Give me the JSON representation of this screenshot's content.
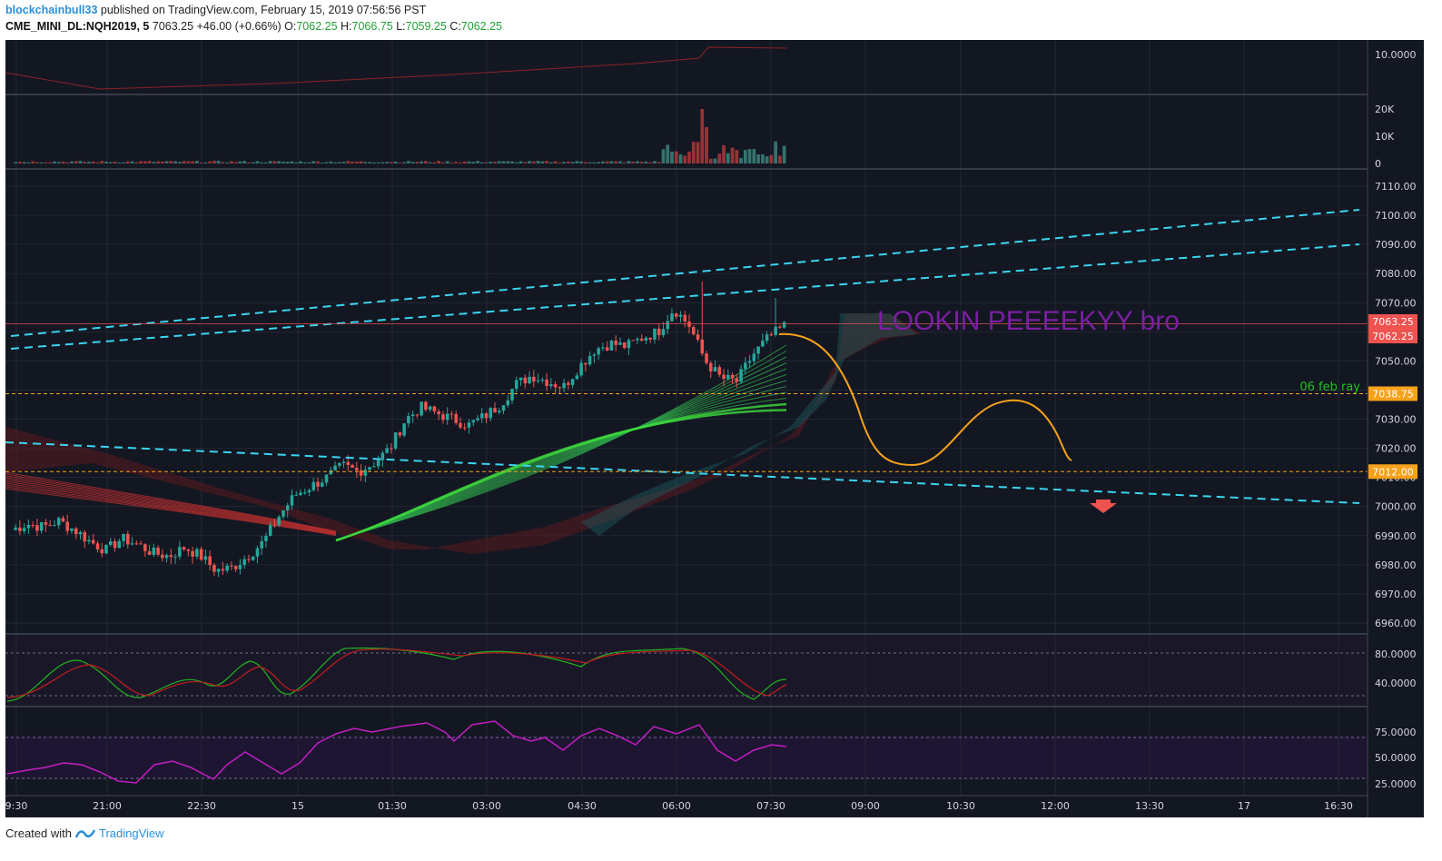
{
  "header": {
    "author": "blockchainbull33",
    "published_text": "published on TradingView.com, February 15, 2019 07:56:56 PST",
    "symbol": "CME_MINI_DL:NQH2019, 5",
    "last": "7063.25",
    "change": "+46.00 (+0.66%)",
    "o_label": "O:",
    "o_value": "7062.25",
    "h_label": "H:",
    "h_value": "7066.75",
    "l_label": "L:",
    "l_value": "7059.25",
    "c_label": "C:",
    "c_value": "7062.25"
  },
  "footer": {
    "created_with": "Created with",
    "brand": "TradingView"
  },
  "colors": {
    "background": "#131722",
    "grid": "#2a2e39",
    "up": "#26a69a",
    "down": "#ef5350",
    "channel": "#3bd5f0",
    "ray": "#f7a21b",
    "annotation": "#7b1fa2",
    "projection": "#f7a21b",
    "ray_label": "#21c21e",
    "stoch_k": "#21b31d",
    "stoch_d": "#c21e1e",
    "rsi": "#c21ec2"
  },
  "chart_data": {
    "type": "candlestick",
    "symbol": "CME_MINI_DL:NQH2019",
    "interval": "5",
    "x_ticks": [
      "9:30",
      "21:00",
      "22:30",
      "15",
      "01:30",
      "03:00",
      "04:30",
      "06:00",
      "07:30",
      "09:00",
      "10:30",
      "12:00",
      "13:30",
      "17",
      "16:30"
    ],
    "y_ticks": [
      "7110.00",
      "7100.00",
      "7090.00",
      "7080.00",
      "7070.00",
      "7060.00",
      "7050.00",
      "7040.00",
      "7030.00",
      "7020.00",
      "7010.00",
      "7000.00",
      "6990.00",
      "6980.00",
      "6970.00",
      "6960.00"
    ],
    "ylim": [
      6955,
      7115
    ],
    "ohlc_path": [
      6992,
      6994,
      6993,
      6995,
      6992,
      6988,
      6985,
      6989,
      6987,
      6984,
      6983,
      6986,
      6983,
      6978,
      6979,
      6983,
      6988,
      6997,
      7004,
      7007,
      7010,
      7014,
      7012,
      7015,
      7020,
      7030,
      7034,
      7032,
      7030,
      7028,
      7031,
      7035,
      7042,
      7045,
      7043,
      7041,
      7048,
      7054,
      7056,
      7055,
      7058,
      7060,
      7068,
      7062,
      7050,
      7044,
      7043,
      7052,
      7058,
      7062
    ],
    "price_labels": [
      {
        "text": "7063.25",
        "value": 7063.25,
        "bg": "#ef5350"
      },
      {
        "text": "7062.25",
        "value": 7062.25,
        "bg": "#ef5350"
      },
      {
        "text": "7038.75",
        "value": 7038.75,
        "bg": "#f7a21b"
      },
      {
        "text": "7012.00",
        "value": 7012.0,
        "bg": "#f7a21b"
      }
    ],
    "ray_label": "06 feb ray",
    "annotation": "LOOKIN PEEEEKYY bro",
    "panes": {
      "top": {
        "y_ticks": [
          "10.0000"
        ]
      },
      "volume": {
        "y_ticks": [
          "20K",
          "10K",
          "0"
        ]
      },
      "stochastic": {
        "y_ticks": [
          "80.0000",
          "40.0000"
        ]
      },
      "rsi": {
        "y_ticks": [
          "75.0000",
          "50.0000",
          "25.0000"
        ]
      }
    }
  }
}
